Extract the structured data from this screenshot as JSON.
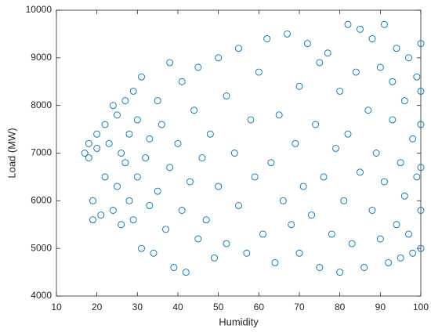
{
  "chart_data": {
    "type": "scatter",
    "xlabel": "Humidity",
    "ylabel": "Load (MW)",
    "color": "#0072BD",
    "xlim": [
      10,
      100
    ],
    "ylim": [
      4000,
      10000
    ],
    "xticks": [
      10,
      20,
      30,
      40,
      50,
      60,
      70,
      80,
      90,
      100
    ],
    "yticks": [
      4000,
      5000,
      6000,
      7000,
      8000,
      9000,
      10000
    ],
    "x": [
      17,
      18,
      18,
      19,
      19,
      20,
      20,
      21,
      22,
      22,
      23,
      24,
      24,
      25,
      25,
      26,
      26,
      27,
      27,
      28,
      28,
      29,
      29,
      30,
      30,
      31,
      31,
      32,
      33,
      33,
      34,
      35,
      35,
      36,
      37,
      38,
      38,
      39,
      40,
      41,
      41,
      42,
      43,
      44,
      45,
      45,
      46,
      47,
      48,
      49,
      50,
      50,
      52,
      52,
      54,
      55,
      55,
      57,
      58,
      59,
      60,
      61,
      62,
      63,
      64,
      65,
      66,
      67,
      68,
      69,
      70,
      70,
      71,
      72,
      73,
      74,
      75,
      75,
      76,
      77,
      78,
      79,
      80,
      80,
      81,
      82,
      82,
      83,
      84,
      85,
      85,
      86,
      87,
      88,
      88,
      89,
      90,
      90,
      91,
      91,
      92,
      93,
      93,
      94,
      94,
      95,
      95,
      96,
      96,
      97,
      97,
      98,
      98,
      99,
      99,
      100,
      100,
      100,
      100,
      100,
      100
    ],
    "values": [
      7000,
      6900,
      7200,
      5600,
      6000,
      7400,
      7100,
      5700,
      7600,
      6500,
      7200,
      5800,
      8000,
      6300,
      7800,
      5500,
      7000,
      6800,
      8100,
      6000,
      7400,
      5600,
      8300,
      7700,
      6500,
      5000,
      8600,
      6900,
      5900,
      7300,
      4900,
      8100,
      6200,
      7600,
      5400,
      8900,
      6700,
      4600,
      7200,
      5800,
      8500,
      4500,
      6400,
      7900,
      5200,
      8800,
      6900,
      5600,
      7400,
      4800,
      9000,
      6300,
      5100,
      8200,
      7000,
      5900,
      9200,
      4900,
      7700,
      6500,
      8700,
      5300,
      9400,
      6800,
      4700,
      7800,
      6000,
      9500,
      5500,
      7200,
      8400,
      4900,
      6300,
      9300,
      5700,
      7600,
      8900,
      4600,
      6500,
      9100,
      5300,
      7100,
      8300,
      4500,
      6000,
      9700,
      7400,
      5100,
      8700,
      6600,
      9600,
      4600,
      7900,
      5800,
      9400,
      7000,
      8800,
      5200,
      6400,
      9700,
      4700,
      7700,
      8500,
      5500,
      9200,
      6800,
      4800,
      8100,
      6100,
      9000,
      5300,
      7300,
      4900,
      8600,
      6500,
      9300,
      5800,
      7600,
      5000,
      8300,
      6700
    ]
  }
}
